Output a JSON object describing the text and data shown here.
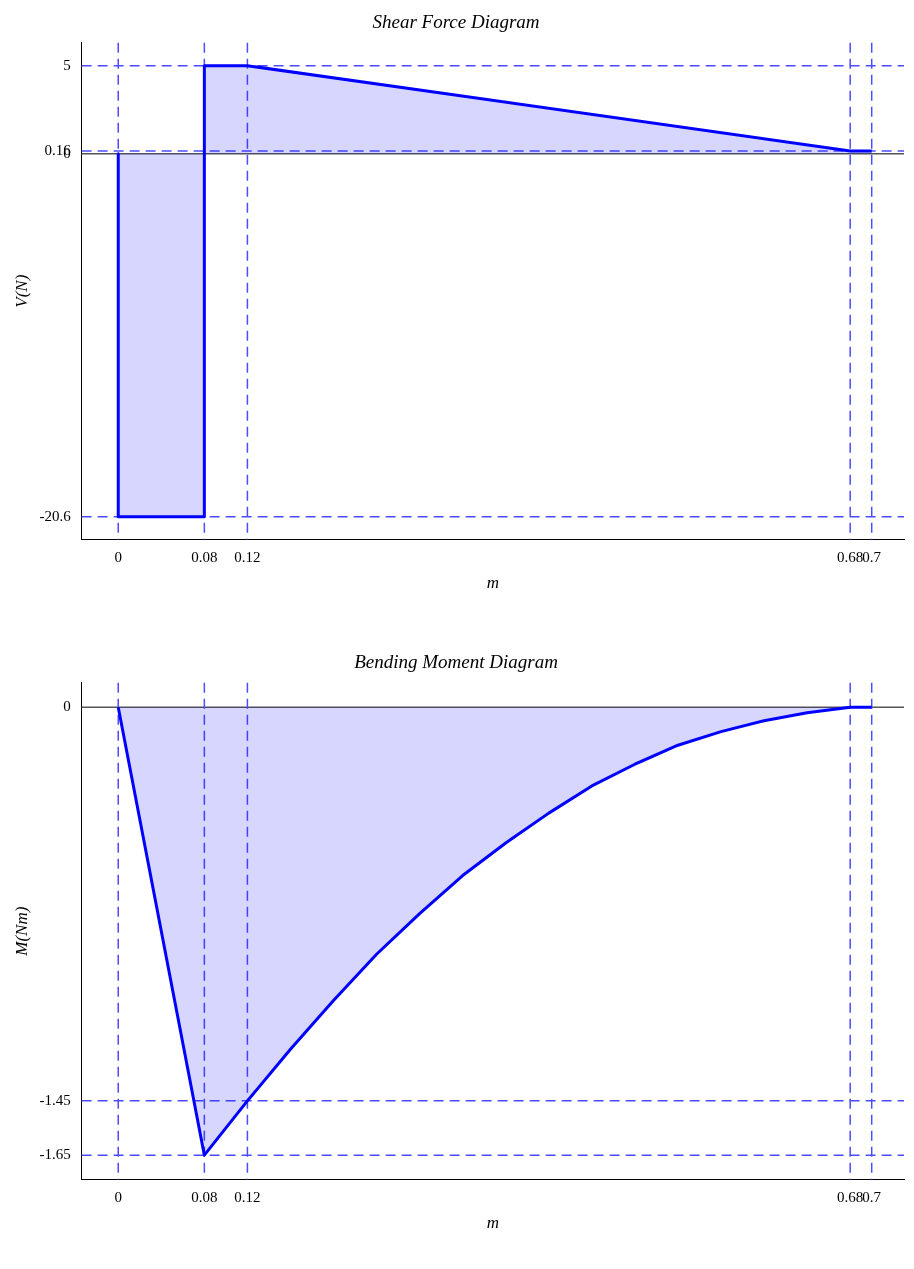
{
  "chart_data": [
    {
      "type": "area",
      "title": "Shear Force Diagram",
      "xlabel": "m",
      "ylabel": "V(N)",
      "series": [
        {
          "color": "#0000ff",
          "x": [
            0,
            0,
            0.08,
            0.08,
            0.12,
            0.68,
            0.7
          ],
          "values": [
            0,
            -20.6,
            -20.6,
            5,
            5,
            0.16,
            0.16
          ]
        }
      ],
      "xlim": [
        -0.034,
        0.73
      ],
      "xticks": [
        0,
        0.08,
        0.12,
        0.68,
        0.7
      ],
      "ylim": [
        -21.9,
        6.3
      ],
      "yticks": [
        -20.6,
        0,
        0.16,
        5
      ],
      "grid": false,
      "legend": false,
      "ref_lines": [
        {
          "axis": "y",
          "value": 0,
          "color": "#555555",
          "line_style": "solid"
        },
        {
          "axis": "x",
          "value": 0,
          "color": "#4d4dff",
          "line_style": "dashed"
        },
        {
          "axis": "x",
          "value": 0.08,
          "color": "#4d4dff",
          "line_style": "dashed"
        },
        {
          "axis": "x",
          "value": 0.12,
          "color": "#4d4dff",
          "line_style": "dashed"
        },
        {
          "axis": "x",
          "value": 0.68,
          "color": "#4d4dff",
          "line_style": "dashed"
        },
        {
          "axis": "x",
          "value": 0.7,
          "color": "#4d4dff",
          "line_style": "dashed"
        },
        {
          "axis": "y",
          "value": 5,
          "color": "#4d4dff",
          "line_style": "dashed"
        },
        {
          "axis": "y",
          "value": 0.16,
          "color": "#4d4dff",
          "line_style": "dashed"
        },
        {
          "axis": "y",
          "value": -20.6,
          "color": "#4d4dff",
          "line_style": "dashed"
        }
      ]
    },
    {
      "type": "area",
      "title": "Bending Moment Diagram",
      "xlabel": "m",
      "ylabel": "M(Nm)",
      "series": [
        {
          "color": "#0000ff",
          "x": [
            0,
            0.08,
            0.12,
            0.16,
            0.2,
            0.24,
            0.28,
            0.32,
            0.36,
            0.4,
            0.44,
            0.48,
            0.52,
            0.56,
            0.6,
            0.64,
            0.68,
            0.7
          ],
          "values": [
            0,
            -1.65,
            -1.45,
            -1.26,
            -1.08,
            -0.91,
            -0.76,
            -0.62,
            -0.5,
            -0.39,
            -0.29,
            -0.21,
            -0.14,
            -0.09,
            -0.05,
            -0.02,
            0,
            0
          ]
        }
      ],
      "xlim": [
        -0.034,
        0.73
      ],
      "xticks": [
        0,
        0.08,
        0.12,
        0.68,
        0.7
      ],
      "ylim": [
        -1.74,
        0.09
      ],
      "yticks": [
        -1.65,
        -1.45,
        0
      ],
      "grid": false,
      "legend": false,
      "ref_lines": [
        {
          "axis": "y",
          "value": 0,
          "color": "#555555",
          "line_style": "solid"
        },
        {
          "axis": "x",
          "value": 0,
          "color": "#4d4dff",
          "line_style": "dashed"
        },
        {
          "axis": "x",
          "value": 0.08,
          "color": "#4d4dff",
          "line_style": "dashed"
        },
        {
          "axis": "x",
          "value": 0.12,
          "color": "#4d4dff",
          "line_style": "dashed"
        },
        {
          "axis": "x",
          "value": 0.68,
          "color": "#4d4dff",
          "line_style": "dashed"
        },
        {
          "axis": "x",
          "value": 0.7,
          "color": "#4d4dff",
          "line_style": "dashed"
        },
        {
          "axis": "y",
          "value": -1.45,
          "color": "#4d4dff",
          "line_style": "dashed"
        },
        {
          "axis": "y",
          "value": -1.65,
          "color": "#4d4dff",
          "line_style": "dashed"
        }
      ]
    }
  ]
}
